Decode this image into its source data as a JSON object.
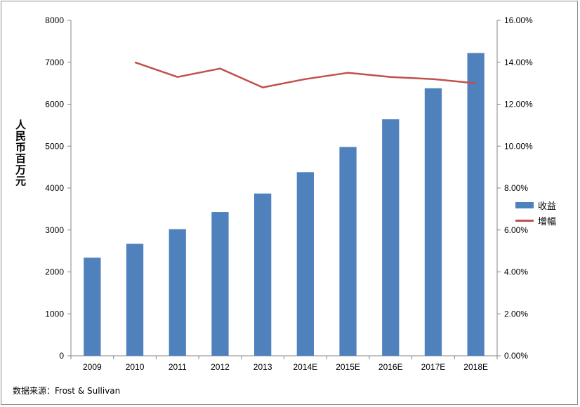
{
  "chart_data": {
    "type": "bar",
    "categories": [
      "2009",
      "2010",
      "2011",
      "2012",
      "2013",
      "2014E",
      "2015E",
      "2016E",
      "2017E",
      "2018E"
    ],
    "series": [
      {
        "name": "收益",
        "type": "bar",
        "axis": "left",
        "color": "#4f81bd",
        "values": [
          2340,
          2670,
          3020,
          3430,
          3870,
          4380,
          4980,
          5640,
          6380,
          7220
        ]
      },
      {
        "name": "增幅",
        "type": "line",
        "axis": "right",
        "color": "#c0504d",
        "values": [
          null,
          14.0,
          13.3,
          13.7,
          12.8,
          13.2,
          13.5,
          13.3,
          13.2,
          13.0
        ]
      }
    ],
    "ylabel": "人民币百万元",
    "ylim": [
      0,
      8000
    ],
    "y_ticks": [
      "0",
      "1000",
      "2000",
      "3000",
      "4000",
      "5000",
      "6000",
      "7000",
      "8000"
    ],
    "y2lim": [
      0,
      16
    ],
    "y2_ticks": [
      "0.00%",
      "2.00%",
      "4.00%",
      "6.00%",
      "8.00%",
      "10.00%",
      "12.00%",
      "14.00%",
      "16.00%"
    ],
    "grid": false,
    "legend_position": "right"
  },
  "source_text": "数据来源：Frost & Sullivan"
}
